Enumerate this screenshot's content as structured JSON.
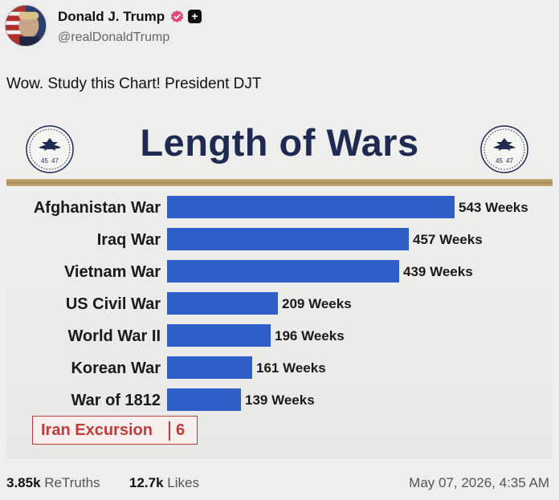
{
  "author": {
    "name": "Donald J. Trump",
    "handle": "@realDonaldTrump"
  },
  "post": {
    "text": "Wow. Study this Chart! President DJT"
  },
  "seal": {
    "text_left": "45",
    "text_right": "47"
  },
  "colors": {
    "bar": "#2f5fc4",
    "title": "#1f2a52",
    "gold": "#b89b66",
    "accent_red": "#c23b3b"
  },
  "chart_data": {
    "type": "bar",
    "orientation": "horizontal",
    "title": "Length of Wars",
    "xlabel": "",
    "ylabel": "",
    "categories": [
      "Afghanistan War",
      "Iraq War",
      "Vietnam War",
      "US Civil War",
      "World War II",
      "Korean War",
      "War of 1812"
    ],
    "values": [
      543,
      457,
      439,
      209,
      196,
      161,
      139
    ],
    "value_labels": [
      "543 Weeks",
      "457 Weeks",
      "439 Weeks",
      "209 Weeks",
      "196 Weeks",
      "161 Weeks",
      "139 Weeks"
    ],
    "xlim": [
      0,
      543
    ],
    "grid": false,
    "annotation": {
      "label": "Iran Excursion",
      "value": "6"
    }
  },
  "stats": {
    "retruths_count": "3.85k",
    "retruths_label": "ReTruths",
    "likes_count": "12.7k",
    "likes_label": "Likes",
    "timestamp": "May 07, 2026, 4:35 AM"
  }
}
